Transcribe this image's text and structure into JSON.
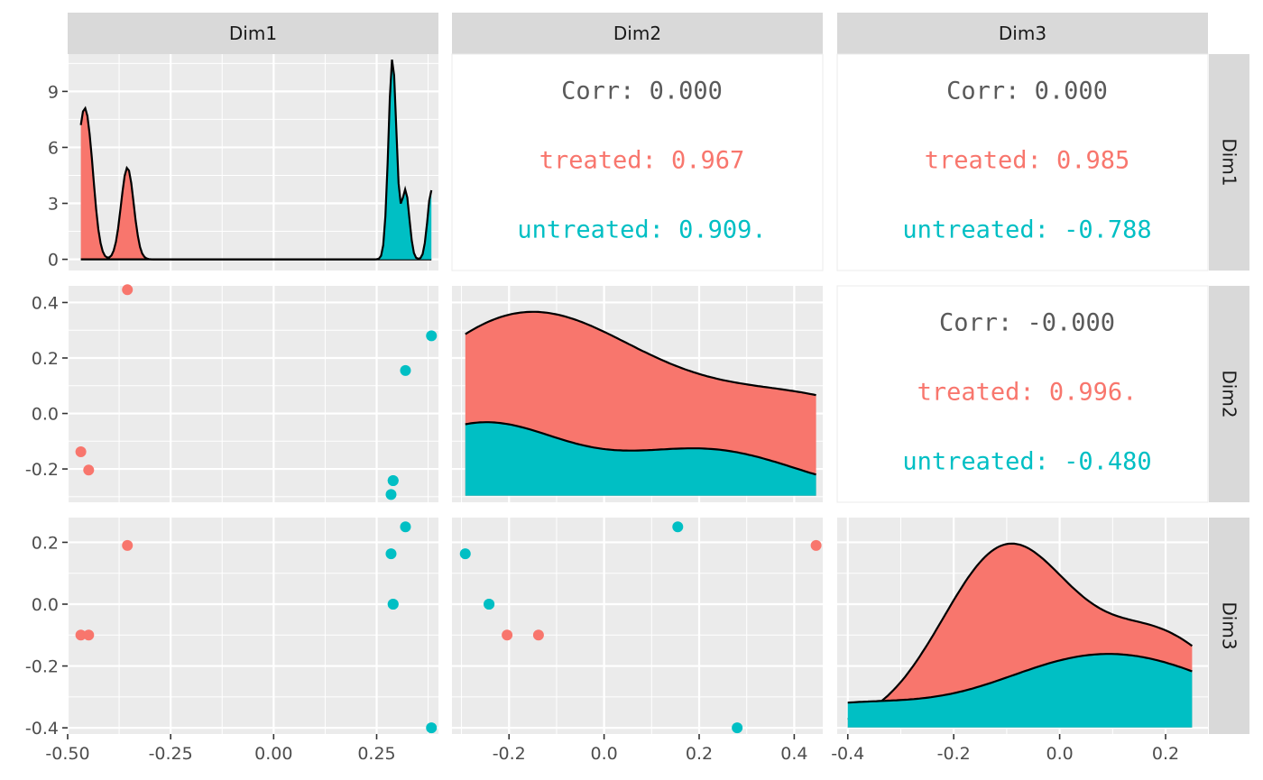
{
  "chart_data": {
    "type": "scatter",
    "variables": [
      "Dim1",
      "Dim2",
      "Dim3"
    ],
    "groups": [
      {
        "name": "treated",
        "color": "#F8766D"
      },
      {
        "name": "untreated",
        "color": "#00BFC4"
      }
    ],
    "axes": {
      "Dim1": {
        "lim": [
          -0.5,
          0.4
        ],
        "ticks": [
          -0.5,
          -0.25,
          0.0,
          0.25
        ],
        "tick_labels": [
          "-0.50",
          "-0.25",
          "0.00",
          "0.25"
        ]
      },
      "Dim2": {
        "lim": [
          -0.32,
          0.46
        ],
        "ticks": [
          -0.2,
          0.0,
          0.2,
          0.4
        ],
        "tick_labels": [
          "-0.2",
          "0.0",
          "0.2",
          "0.4"
        ]
      },
      "Dim3": {
        "lim": [
          -0.42,
          0.28
        ],
        "ticks": [
          -0.4,
          -0.2,
          0.0,
          0.2
        ],
        "tick_labels": [
          "-0.4",
          "-0.2",
          "0.0",
          "0.2"
        ]
      }
    },
    "density_axis": {
      "lim": [
        -0.6,
        11.0
      ],
      "ticks": [
        0,
        3,
        6,
        9
      ],
      "tick_labels": [
        "0",
        "3",
        "6",
        "9"
      ]
    },
    "points": {
      "treated": {
        "Dim1": [
          -0.468,
          -0.449,
          -0.355
        ],
        "Dim2": [
          -0.138,
          -0.204,
          0.446
        ],
        "Dim3": [
          -0.1,
          -0.1,
          0.19
        ]
      },
      "untreated": {
        "Dim1": [
          0.285,
          0.29,
          0.32,
          0.383,
          0.29
        ],
        "Dim2": [
          -0.292,
          -0.242,
          0.155,
          0.28,
          -0.242
        ],
        "Dim3": [
          0.163,
          0.0,
          0.25,
          -0.4,
          0.0
        ]
      }
    },
    "correlations": [
      {
        "row": "Dim1",
        "col": "Dim2",
        "overall": "Corr: 0.000",
        "treated": "treated: 0.967",
        "untreated": "untreated: 0.909."
      },
      {
        "row": "Dim1",
        "col": "Dim3",
        "overall": "Corr: 0.000",
        "treated": "treated: 0.985",
        "untreated": "untreated: -0.788"
      },
      {
        "row": "Dim2",
        "col": "Dim3",
        "overall": "Corr: -0.000",
        "treated": "treated: 0.996.",
        "untreated": "untreated: -0.480"
      }
    ],
    "legend": "none",
    "grid": true
  }
}
